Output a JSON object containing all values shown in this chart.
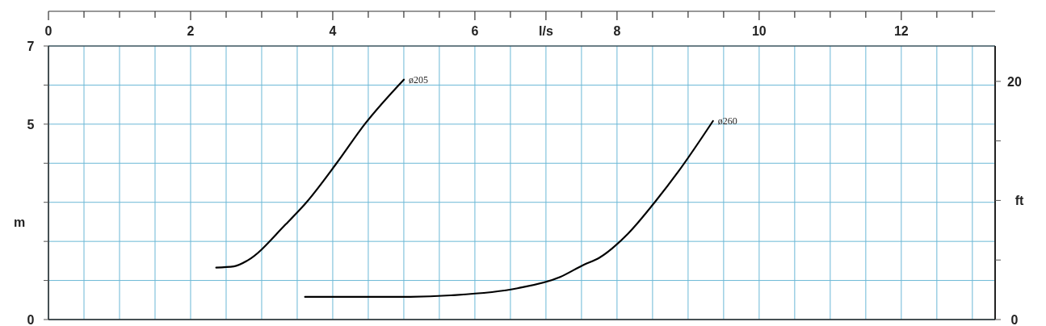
{
  "chart_data": {
    "type": "line",
    "ylabel": "m",
    "y2label": "ft",
    "xlim": [
      0,
      13.32
    ],
    "xticks": [
      0,
      {
        "value": 0.5,
        "label": null
      },
      2,
      {
        "value": 1,
        "label": null
      },
      {
        "value": 1.5,
        "label": null
      },
      {
        "value": 2.5,
        "label": null
      },
      {
        "value": 3,
        "label": null
      },
      {
        "value": 3.5,
        "label": null
      },
      4,
      {
        "value": 4.5,
        "label": null
      },
      {
        "value": 5,
        "label": null
      },
      {
        "value": 5.5,
        "label": null
      },
      6,
      {
        "value": 6.5,
        "label": null
      },
      {
        "value": 7,
        "label": "l/s"
      },
      {
        "value": 7.5,
        "label": null
      },
      8,
      {
        "value": 8.5,
        "label": null
      },
      {
        "value": 9,
        "label": null
      },
      {
        "value": 9.5,
        "label": null
      },
      10,
      {
        "value": 10.5,
        "label": null
      },
      {
        "value": 11,
        "label": null
      },
      {
        "value": 11.5,
        "label": null
      },
      12,
      {
        "value": 12.5,
        "label": null
      },
      {
        "value": 13,
        "label": null
      }
    ],
    "ylim": [
      0,
      7
    ],
    "yticks": [
      0,
      {
        "value": 1,
        "label": null
      },
      {
        "value": 2,
        "label": null
      },
      {
        "value": 3,
        "label": null
      },
      {
        "value": 4,
        "label": null
      },
      5,
      {
        "value": 6,
        "label": null
      },
      7
    ],
    "y2lim": [
      0,
      22.97
    ],
    "y2ticks": [
      0,
      {
        "value": 5,
        "label": null
      },
      {
        "value": 10,
        "label": null
      },
      {
        "value": 15,
        "label": null
      },
      20
    ],
    "grid": true,
    "series": [
      {
        "name": "ø205",
        "color": "#000000",
        "x": [
          2.36,
          2.61,
          2.8,
          3.34,
          3.63,
          4.05,
          4.45,
          5.0
        ],
        "values": [
          1.33,
          1.36,
          1.51,
          2.44,
          3.0,
          3.99,
          5.0,
          6.14
        ]
      },
      {
        "name": "ø260",
        "color": "#000000",
        "x": [
          3.61,
          5.0,
          5.66,
          6.6,
          7.2,
          7.53,
          7.75,
          8.15,
          8.53,
          8.86,
          9.35
        ],
        "values": [
          0.58,
          0.58,
          0.62,
          0.8,
          1.09,
          1.4,
          1.58,
          2.19,
          3.0,
          3.78,
          5.08
        ]
      }
    ]
  }
}
